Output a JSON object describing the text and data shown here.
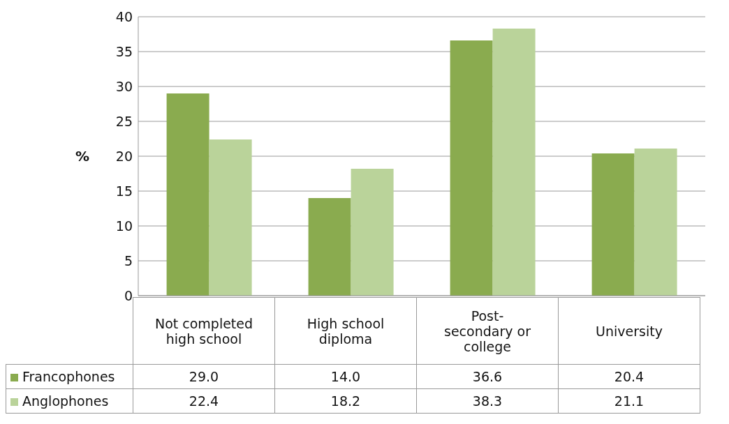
{
  "chart_data": {
    "type": "bar",
    "ylabel": "%",
    "categories": [
      "Not completed high school",
      "High school diploma",
      "Post-secondary or college",
      "University"
    ],
    "series": [
      {
        "name": "Francophones",
        "color": "#8aab4f",
        "values": [
          29.0,
          14.0,
          36.6,
          20.4
        ],
        "value_labels": [
          "29.0",
          "14.0",
          "36.6",
          "20.4"
        ]
      },
      {
        "name": "Anglophones",
        "color": "#bad39a",
        "values": [
          22.4,
          18.2,
          38.3,
          21.1
        ],
        "value_labels": [
          "22.4",
          "18.2",
          "38.3",
          "21.1"
        ]
      }
    ],
    "ylim": [
      0,
      40
    ],
    "yticks": [
      0,
      5,
      10,
      15,
      20,
      25,
      30,
      35,
      40
    ],
    "grid": "y",
    "legend": "bottom"
  }
}
